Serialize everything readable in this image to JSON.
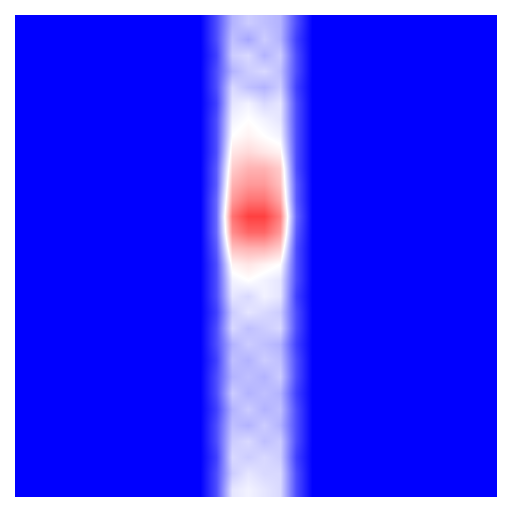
{
  "chart_data": {
    "type": "heatmap",
    "xlim": [
      -0.5,
      29.5
    ],
    "ylim": [
      29.5,
      -0.5
    ],
    "zlim": [
      -1,
      1
    ],
    "tick_labels": false,
    "grid": false,
    "cells": [
      [
        -1,
        -1,
        -1,
        -1,
        -1,
        -1,
        -1,
        -1,
        -1,
        -1,
        -1,
        -1,
        -0.7,
        -0.3,
        -0.2,
        -0.25,
        -0.3,
        -0.7,
        -1,
        -1,
        -1,
        -1,
        -1,
        -1,
        -1,
        -1,
        -1,
        -1,
        -1,
        -1
      ],
      [
        -1,
        -1,
        -1,
        -1,
        -1,
        -1,
        -1,
        -1,
        -1,
        -1,
        -1,
        -1,
        -0.7,
        -0.25,
        -0.35,
        -0.2,
        -0.3,
        -0.75,
        -1,
        -1,
        -1,
        -1,
        -1,
        -1,
        -1,
        -1,
        -1,
        -1,
        -1,
        -1
      ],
      [
        -1,
        -1,
        -1,
        -1,
        -1,
        -1,
        -1,
        -1,
        -1,
        -1,
        -1,
        -1,
        -0.75,
        -0.2,
        -0.15,
        -0.3,
        -0.2,
        -0.7,
        -1,
        -1,
        -1,
        -1,
        -1,
        -1,
        -1,
        -1,
        -1,
        -1,
        -1,
        -1
      ],
      [
        -1,
        -1,
        -1,
        -1,
        -1,
        -1,
        -1,
        -1,
        -1,
        -1,
        -1,
        -1,
        -0.7,
        -0.3,
        -0.2,
        -0.15,
        -0.25,
        -0.7,
        -1,
        -1,
        -1,
        -1,
        -1,
        -1,
        -1,
        -1,
        -1,
        -1,
        -1,
        -1
      ],
      [
        -1,
        -1,
        -1,
        -1,
        -1,
        -1,
        -1,
        -1,
        -1,
        -1,
        -1,
        -1,
        -0.7,
        -0.15,
        -0.25,
        -0.3,
        -0.2,
        -0.75,
        -1,
        -1,
        -1,
        -1,
        -1,
        -1,
        -1,
        -1,
        -1,
        -1,
        -1,
        -1
      ],
      [
        -1,
        -1,
        -1,
        -1,
        -1,
        -1,
        -1,
        -1,
        -1,
        -1,
        -1,
        -1,
        -0.75,
        -0.1,
        -0.05,
        -0.15,
        -0.1,
        -0.7,
        -1,
        -1,
        -1,
        -1,
        -1,
        -1,
        -1,
        -1,
        -1,
        -1,
        -1,
        -1
      ],
      [
        -1,
        -1,
        -1,
        -1,
        -1,
        -1,
        -1,
        -1,
        -1,
        -1,
        -1,
        -1,
        -0.7,
        -0.05,
        0.0,
        -0.05,
        -0.1,
        -0.7,
        -1,
        -1,
        -1,
        -1,
        -1,
        -1,
        -1,
        -1,
        -1,
        -1,
        -1,
        -1
      ],
      [
        -1,
        -1,
        -1,
        -1,
        -1,
        -1,
        -1,
        -1,
        -1,
        -1,
        -1,
        -1,
        -0.7,
        0.0,
        0.05,
        0.0,
        -0.05,
        -0.7,
        -1,
        -1,
        -1,
        -1,
        -1,
        -1,
        -1,
        -1,
        -1,
        -1,
        -1,
        -1
      ],
      [
        -1,
        -1,
        -1,
        -1,
        -1,
        -1,
        -1,
        -1,
        -1,
        -1,
        -1,
        -1,
        -0.7,
        0.1,
        0.15,
        0.1,
        0.05,
        -0.7,
        -1,
        -1,
        -1,
        -1,
        -1,
        -1,
        -1,
        -1,
        -1,
        -1,
        -1,
        -1
      ],
      [
        -1,
        -1,
        -1,
        -1,
        -1,
        -1,
        -1,
        -1,
        -1,
        -1,
        -1,
        -1,
        -0.65,
        0.2,
        0.3,
        0.3,
        0.2,
        -0.7,
        -1,
        -1,
        -1,
        -1,
        -1,
        -1,
        -1,
        -1,
        -1,
        -1,
        -1,
        -1
      ],
      [
        -1,
        -1,
        -1,
        -1,
        -1,
        -1,
        -1,
        -1,
        -1,
        -1,
        -1,
        -1,
        -0.65,
        0.3,
        0.4,
        0.4,
        0.25,
        -0.65,
        -1,
        -1,
        -1,
        -1,
        -1,
        -1,
        -1,
        -1,
        -1,
        -1,
        -1,
        -1
      ],
      [
        -1,
        -1,
        -1,
        -1,
        -1,
        -1,
        -1,
        -1,
        -1,
        -1,
        -1,
        -1,
        -0.6,
        0.4,
        0.55,
        0.55,
        0.35,
        -0.65,
        -1,
        -1,
        -1,
        -1,
        -1,
        -1,
        -1,
        -1,
        -1,
        -1,
        -1,
        -1
      ],
      [
        -1,
        -1,
        -1,
        -1,
        -1,
        -1,
        -1,
        -1,
        -1,
        -1,
        -1,
        -1,
        -0.6,
        0.55,
        0.75,
        0.75,
        0.5,
        -0.6,
        -1,
        -1,
        -1,
        -1,
        -1,
        -1,
        -1,
        -1,
        -1,
        -1,
        -1,
        -1
      ],
      [
        -1,
        -1,
        -1,
        -1,
        -1,
        -1,
        -1,
        -1,
        -1,
        -1,
        -1,
        -1,
        -0.6,
        0.45,
        0.6,
        0.6,
        0.4,
        -0.65,
        -1,
        -1,
        -1,
        -1,
        -1,
        -1,
        -1,
        -1,
        -1,
        -1,
        -1,
        -1
      ],
      [
        -1,
        -1,
        -1,
        -1,
        -1,
        -1,
        -1,
        -1,
        -1,
        -1,
        -1,
        -1,
        -0.65,
        0.25,
        0.3,
        0.3,
        0.2,
        -0.7,
        -1,
        -1,
        -1,
        -1,
        -1,
        -1,
        -1,
        -1,
        -1,
        -1,
        -1,
        -1
      ],
      [
        -1,
        -1,
        -1,
        -1,
        -1,
        -1,
        -1,
        -1,
        -1,
        -1,
        -1,
        -1,
        -0.7,
        0.05,
        0.1,
        0.05,
        0.0,
        -0.7,
        -1,
        -1,
        -1,
        -1,
        -1,
        -1,
        -1,
        -1,
        -1,
        -1,
        -1,
        -1
      ],
      [
        -1,
        -1,
        -1,
        -1,
        -1,
        -1,
        -1,
        -1,
        -1,
        -1,
        -1,
        -1,
        -0.7,
        -0.05,
        0.0,
        -0.05,
        -0.1,
        -0.7,
        -1,
        -1,
        -1,
        -1,
        -1,
        -1,
        -1,
        -1,
        -1,
        -1,
        -1,
        -1
      ],
      [
        -1,
        -1,
        -1,
        -1,
        -1,
        -1,
        -1,
        -1,
        -1,
        -1,
        -1,
        -1,
        -0.7,
        -0.1,
        -0.15,
        -0.05,
        -0.1,
        -0.75,
        -1,
        -1,
        -1,
        -1,
        -1,
        -1,
        -1,
        -1,
        -1,
        -1,
        -1,
        -1
      ],
      [
        -1,
        -1,
        -1,
        -1,
        -1,
        -1,
        -1,
        -1,
        -1,
        -1,
        -1,
        -1,
        -0.75,
        -0.2,
        -0.1,
        -0.15,
        -0.2,
        -0.7,
        -1,
        -1,
        -1,
        -1,
        -1,
        -1,
        -1,
        -1,
        -1,
        -1,
        -1,
        -1
      ],
      [
        -1,
        -1,
        -1,
        -1,
        -1,
        -1,
        -1,
        -1,
        -1,
        -1,
        -1,
        -1,
        -0.7,
        -0.15,
        -0.25,
        -0.2,
        -0.15,
        -0.7,
        -1,
        -1,
        -1,
        -1,
        -1,
        -1,
        -1,
        -1,
        -1,
        -1,
        -1,
        -1
      ],
      [
        -1,
        -1,
        -1,
        -1,
        -1,
        -1,
        -1,
        -1,
        -1,
        -1,
        -1,
        -1,
        -0.7,
        -0.3,
        -0.2,
        -0.25,
        -0.3,
        -0.75,
        -1,
        -1,
        -1,
        -1,
        -1,
        -1,
        -1,
        -1,
        -1,
        -1,
        -1,
        -1
      ],
      [
        -1,
        -1,
        -1,
        -1,
        -1,
        -1,
        -1,
        -1,
        -1,
        -1,
        -1,
        -1,
        -0.75,
        -0.25,
        -0.3,
        -0.2,
        -0.25,
        -0.7,
        -1,
        -1,
        -1,
        -1,
        -1,
        -1,
        -1,
        -1,
        -1,
        -1,
        -1,
        -1
      ],
      [
        -1,
        -1,
        -1,
        -1,
        -1,
        -1,
        -1,
        -1,
        -1,
        -1,
        -1,
        -1,
        -0.7,
        -0.3,
        -0.25,
        -0.3,
        -0.2,
        -0.7,
        -1,
        -1,
        -1,
        -1,
        -1,
        -1,
        -1,
        -1,
        -1,
        -1,
        -1,
        -1
      ],
      [
        -1,
        -1,
        -1,
        -1,
        -1,
        -1,
        -1,
        -1,
        -1,
        -1,
        -1,
        -1,
        -0.7,
        -0.2,
        -0.3,
        -0.25,
        -0.3,
        -0.75,
        -1,
        -1,
        -1,
        -1,
        -1,
        -1,
        -1,
        -1,
        -1,
        -1,
        -1,
        -1
      ],
      [
        -1,
        -1,
        -1,
        -1,
        -1,
        -1,
        -1,
        -1,
        -1,
        -1,
        -1,
        -1,
        -0.75,
        -0.3,
        -0.2,
        -0.3,
        -0.25,
        -0.7,
        -1,
        -1,
        -1,
        -1,
        -1,
        -1,
        -1,
        -1,
        -1,
        -1,
        -1,
        -1
      ],
      [
        -1,
        -1,
        -1,
        -1,
        -1,
        -1,
        -1,
        -1,
        -1,
        -1,
        -1,
        -1,
        -0.7,
        -0.25,
        -0.3,
        -0.2,
        -0.3,
        -0.7,
        -1,
        -1,
        -1,
        -1,
        -1,
        -1,
        -1,
        -1,
        -1,
        -1,
        -1,
        -1
      ],
      [
        -1,
        -1,
        -1,
        -1,
        -1,
        -1,
        -1,
        -1,
        -1,
        -1,
        -1,
        -1,
        -0.7,
        -0.2,
        -0.15,
        -0.25,
        -0.2,
        -0.7,
        -1,
        -1,
        -1,
        -1,
        -1,
        -1,
        -1,
        -1,
        -1,
        -1,
        -1,
        -1
      ],
      [
        -1,
        -1,
        -1,
        -1,
        -1,
        -1,
        -1,
        -1,
        -1,
        -1,
        -1,
        -1,
        -0.75,
        -0.15,
        -0.2,
        -0.15,
        -0.2,
        -0.75,
        -1,
        -1,
        -1,
        -1,
        -1,
        -1,
        -1,
        -1,
        -1,
        -1,
        -1,
        -1
      ],
      [
        -1,
        -1,
        -1,
        -1,
        -1,
        -1,
        -1,
        -1,
        -1,
        -1,
        -1,
        -1,
        -0.7,
        -0.2,
        -0.1,
        -0.15,
        -0.15,
        -0.7,
        -1,
        -1,
        -1,
        -1,
        -1,
        -1,
        -1,
        -1,
        -1,
        -1,
        -1,
        -1
      ],
      [
        -1,
        -1,
        -1,
        -1,
        -1,
        -1,
        -1,
        -1,
        -1,
        -1,
        -1,
        -1,
        -0.7,
        -0.1,
        -0.05,
        -0.1,
        -0.15,
        -0.7,
        -1,
        -1,
        -1,
        -1,
        -1,
        -1,
        -1,
        -1,
        -1,
        -1,
        -1,
        -1
      ]
    ]
  }
}
